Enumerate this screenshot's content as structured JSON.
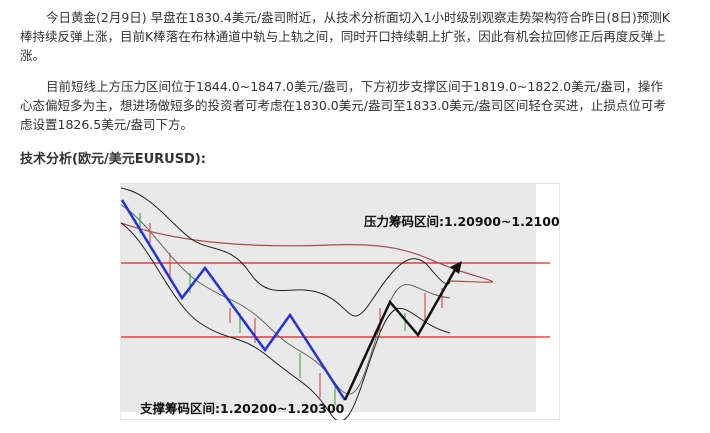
{
  "paragraphs": [
    "今日黄金(2月9日) 早盘在1830.4美元/盎司附近，从技术分析面切入1小时级别观察走势架构符合昨日(8日)预测K棒持续反弹上涨，目前K棒落在布林通道中轨与上轨之间，同时开口持续朝上扩张，因此有机会拉回修正后再度反弹上涨。",
    "目前短线上方压力区间位于1844.0~1847.0美元/盎司，下方初步支撑区间于1819.0~1822.0美元/盎司，操作心态偏短多为主，想进场做短多的投资者可考虑在1830.0美元/盎司至1833.0美元/盎司区间轻仓买进，止损点位可考虑设置1826.5美元/盎司下方。"
  ],
  "heading": "技术分析(欧元/美元EURUSD):",
  "image": {
    "resistance_label": "压力筹码区间:1.20900~1.21000",
    "support_label": "支撑筹码区间:1.20200~1.20300"
  }
}
